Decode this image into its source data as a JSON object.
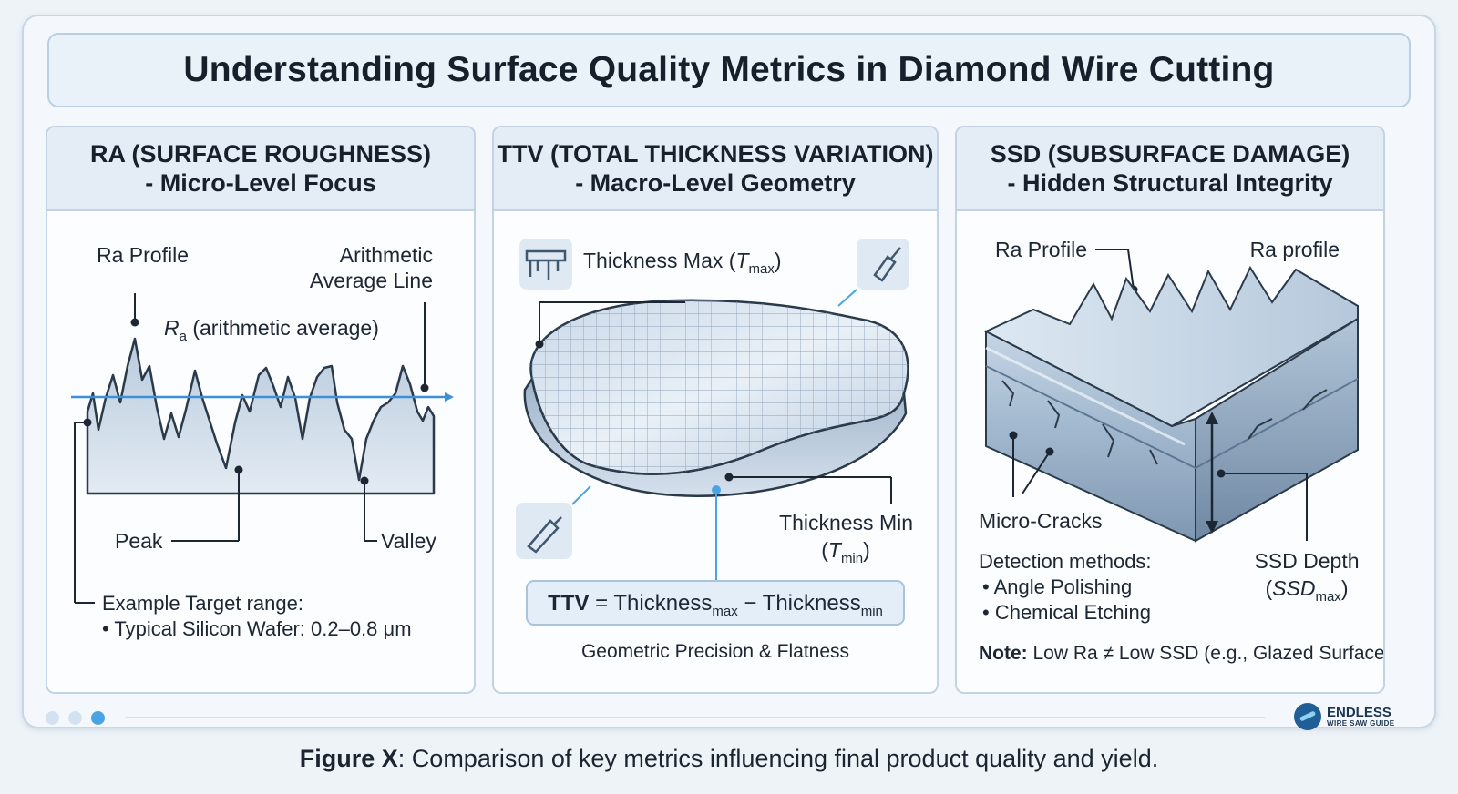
{
  "title": "Understanding Surface Quality Metrics in Diamond Wire Cutting",
  "panels": {
    "ra": {
      "heading_1": "RA (SURFACE ROUGHNESS)",
      "heading_2": "- Micro-Level Focus",
      "label_profile": "Ra Profile",
      "label_avg_1": "Arithmetic",
      "label_avg_2": "Average Line",
      "label_ra_sym": "R",
      "label_ra_sub": "a",
      "label_ra_text": " (arithmetic average)",
      "label_peak": "Peak",
      "label_valley": "Valley",
      "target_1": "Example Target range:",
      "target_2": "• Typical Silicon Wafer: 0.2–0.8 μm"
    },
    "ttv": {
      "heading_1": "TTV (TOTAL THICKNESS VARIATION)",
      "heading_2": "- Macro-Level Geometry",
      "max_label": "Thickness Max (",
      "max_sym": "T",
      "max_sub": "max",
      "close_paren": ")",
      "min_label": "Thickness Min",
      "min_open": "(",
      "min_sym": "T",
      "min_sub": "min",
      "formula_ttv": "TTV",
      "formula_eq": " = Thickness",
      "formula_sub1": "max",
      "formula_minus": " − Thickness",
      "formula_sub2": "min",
      "footer": "Geometric Precision & Flatness"
    },
    "ssd": {
      "heading_1": "SSD (SUBSURFACE DAMAGE)",
      "heading_2": "- Hidden Structural Integrity",
      "label_profile_left": "Ra Profile",
      "label_profile_right": "Ra profile",
      "label_cracks": "Micro-Cracks",
      "detect_title": "Detection methods:",
      "detect_1": "• Angle Polishing",
      "detect_2": "• Chemical Etching",
      "depth_1": "SSD Depth",
      "depth_open": "(",
      "depth_sym": "SSD",
      "depth_sub": "max",
      "depth_close": ")",
      "note_bold": "Note:",
      "note_text": " Low Ra ≠ Low SSD (e.g., Glazed Surface)"
    }
  },
  "caption_bold": "Figure X",
  "caption_text": ": Comparison of key metrics influencing final product quality and yield.",
  "logo_1": "ENDLESS",
  "logo_2": "WIRE SAW GUIDE",
  "colors": {
    "accent": "#4aa3e3",
    "panel_head": "#e4edf6",
    "border": "#c3d3e3"
  }
}
